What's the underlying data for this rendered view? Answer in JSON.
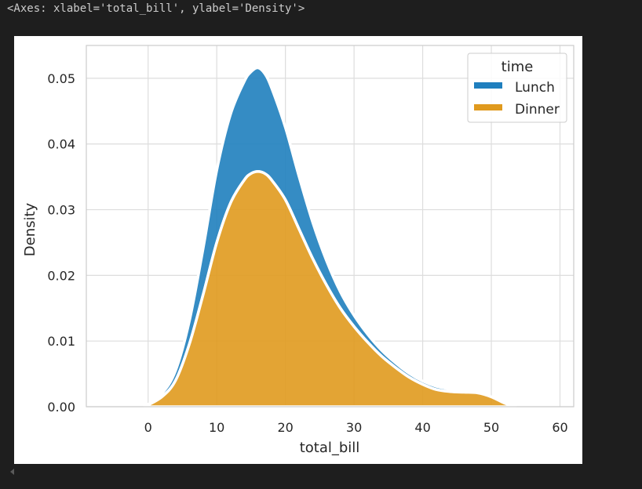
{
  "output": {
    "text": "<Axes: xlabel='total_bill', ylabel='Density'>"
  },
  "chart_data": {
    "type": "area",
    "stacked": true,
    "xlabel": "total_bill",
    "ylabel": "Density",
    "xlim": [
      -9,
      62
    ],
    "ylim": [
      0,
      0.055
    ],
    "xticks": [
      0,
      10,
      20,
      30,
      40,
      50,
      60
    ],
    "yticks": [
      0.0,
      0.01,
      0.02,
      0.03,
      0.04,
      0.05
    ],
    "xtick_labels": [
      "0",
      "10",
      "20",
      "30",
      "40",
      "50",
      "60"
    ],
    "ytick_labels": [
      "0.00",
      "0.01",
      "0.02",
      "0.03",
      "0.04",
      "0.05"
    ],
    "grid": true,
    "legend": {
      "title": "time",
      "placement": "top-right",
      "entries": [
        "Lunch",
        "Dinner"
      ]
    },
    "x": [
      -0.5,
      2,
      4,
      6,
      8,
      10,
      12,
      14,
      15,
      16,
      17,
      18,
      20,
      22,
      24,
      26,
      28,
      30,
      32,
      34,
      36,
      38,
      40,
      42,
      44,
      46,
      48,
      50,
      52,
      53.5
    ],
    "series": [
      {
        "name": "Dinner",
        "color": "#e09a1e",
        "values": [
          0.0,
          0.0015,
          0.004,
          0.0095,
          0.017,
          0.025,
          0.031,
          0.0345,
          0.0355,
          0.0358,
          0.0355,
          0.0345,
          0.0315,
          0.027,
          0.0225,
          0.0185,
          0.015,
          0.0122,
          0.0098,
          0.0077,
          0.006,
          0.0045,
          0.0034,
          0.0026,
          0.0023,
          0.0022,
          0.0021,
          0.0015,
          0.0005,
          0.0
        ]
      },
      {
        "name": "Lunch",
        "color": "#1f7fbe",
        "values": [
          0.0,
          0.0005,
          0.0015,
          0.0035,
          0.007,
          0.011,
          0.0135,
          0.015,
          0.0155,
          0.0158,
          0.0152,
          0.014,
          0.011,
          0.008,
          0.0055,
          0.0037,
          0.0025,
          0.0017,
          0.0012,
          0.0009,
          0.0007,
          0.0006,
          0.0005,
          0.0005,
          0.0004,
          0.0002,
          0.0001,
          0.0,
          0.0,
          0.0
        ]
      }
    ]
  }
}
